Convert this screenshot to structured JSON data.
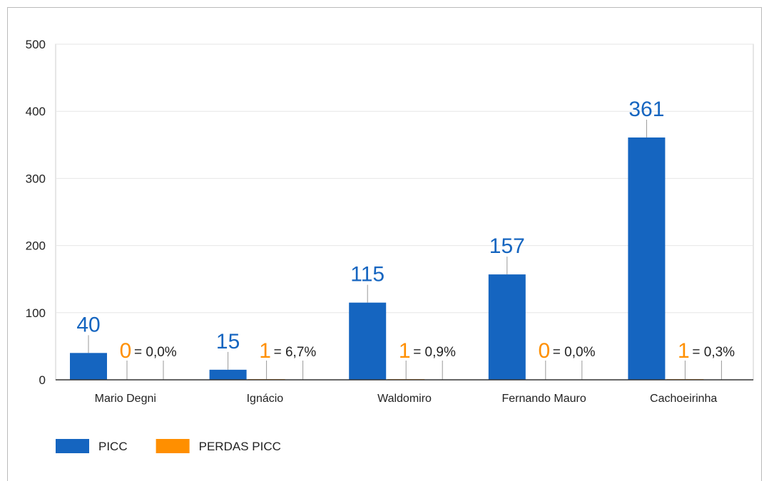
{
  "chart_data": {
    "type": "bar",
    "categories": [
      "Mario Degni",
      "Ignácio",
      "Waldomiro",
      "Fernando Mauro",
      "Cachoeirinha"
    ],
    "series": [
      {
        "name": "PICC",
        "color": "#1565c0",
        "values": [
          40,
          15,
          115,
          157,
          361
        ]
      },
      {
        "name": "PERDAS PICC",
        "color": "#ff8f00",
        "values": [
          0,
          1,
          1,
          0,
          1
        ]
      }
    ],
    "annotations": [
      "= 0,0%",
      "= 6,7%",
      "= 0,9%",
      "= 0,0%",
      "= 0,3%"
    ],
    "ylim": [
      0,
      500
    ],
    "yticks": [
      0,
      100,
      200,
      300,
      400,
      500
    ],
    "grid": true,
    "legend": "bottom"
  }
}
